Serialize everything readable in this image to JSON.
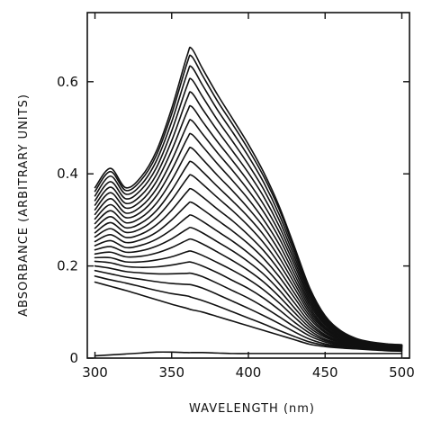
{
  "chart_data": {
    "type": "line",
    "title": "",
    "xlabel": "WAVELENGTH (nm)",
    "ylabel": "ABSORBANCE (ARBITRARY UNITS)",
    "xlim": [
      295,
      505
    ],
    "ylim": [
      0,
      0.75
    ],
    "xticks": [
      300,
      350,
      400,
      450,
      500
    ],
    "yticks": [
      0,
      0.2,
      0.4,
      0.6
    ],
    "xtick_labels": [
      "300",
      "350",
      "400",
      "450",
      "500"
    ],
    "ytick_labels": [
      "0",
      "0.2",
      "0.4",
      "0.6"
    ],
    "grid": false,
    "legend": "none",
    "line_color": "#111111",
    "x": [
      300,
      310,
      320,
      330,
      340,
      350,
      360,
      363,
      370,
      380,
      390,
      400,
      410,
      420,
      430,
      440,
      450,
      460,
      470,
      480,
      490,
      500
    ],
    "series": [
      {
        "values": [
          0.005,
          0.007,
          0.009,
          0.011,
          0.013,
          0.013,
          0.012,
          0.012,
          0.012,
          0.011,
          0.01,
          0.01,
          0.01,
          0.01,
          0.01,
          0.01,
          0.01,
          0.01,
          0.01,
          0.01,
          0.01,
          0.01
        ]
      },
      {
        "values": [
          0.165,
          0.156,
          0.147,
          0.137,
          0.127,
          0.117,
          0.108,
          0.105,
          0.1,
          0.09,
          0.08,
          0.07,
          0.06,
          0.05,
          0.04,
          0.03,
          0.025,
          0.022,
          0.02,
          0.018,
          0.016,
          0.015
        ]
      },
      {
        "values": [
          0.178,
          0.17,
          0.163,
          0.155,
          0.147,
          0.14,
          0.135,
          0.132,
          0.125,
          0.113,
          0.1,
          0.087,
          0.074,
          0.06,
          0.047,
          0.035,
          0.028,
          0.024,
          0.021,
          0.019,
          0.017,
          0.016
        ]
      },
      {
        "values": [
          0.19,
          0.183,
          0.176,
          0.171,
          0.166,
          0.162,
          0.16,
          0.159,
          0.152,
          0.138,
          0.123,
          0.108,
          0.092,
          0.075,
          0.057,
          0.041,
          0.031,
          0.026,
          0.022,
          0.02,
          0.018,
          0.017
        ]
      },
      {
        "values": [
          0.2,
          0.195,
          0.188,
          0.185,
          0.183,
          0.183,
          0.184,
          0.184,
          0.177,
          0.162,
          0.146,
          0.13,
          0.111,
          0.09,
          0.068,
          0.048,
          0.035,
          0.028,
          0.024,
          0.021,
          0.019,
          0.018
        ]
      },
      {
        "values": [
          0.21,
          0.207,
          0.199,
          0.197,
          0.198,
          0.202,
          0.208,
          0.208,
          0.2,
          0.185,
          0.168,
          0.151,
          0.13,
          0.105,
          0.078,
          0.054,
          0.038,
          0.03,
          0.025,
          0.022,
          0.02,
          0.019
        ]
      },
      {
        "values": [
          0.218,
          0.218,
          0.209,
          0.209,
          0.213,
          0.22,
          0.231,
          0.232,
          0.223,
          0.207,
          0.19,
          0.171,
          0.148,
          0.12,
          0.089,
          0.06,
          0.041,
          0.032,
          0.026,
          0.023,
          0.021,
          0.02
        ]
      },
      {
        "values": [
          0.226,
          0.23,
          0.22,
          0.221,
          0.228,
          0.24,
          0.256,
          0.258,
          0.248,
          0.23,
          0.211,
          0.19,
          0.165,
          0.134,
          0.099,
          0.066,
          0.045,
          0.034,
          0.027,
          0.024,
          0.022,
          0.021
        ]
      },
      {
        "values": [
          0.235,
          0.242,
          0.23,
          0.233,
          0.243,
          0.259,
          0.28,
          0.283,
          0.272,
          0.252,
          0.232,
          0.209,
          0.182,
          0.148,
          0.109,
          0.072,
          0.048,
          0.035,
          0.028,
          0.025,
          0.023,
          0.022
        ]
      },
      {
        "values": [
          0.244,
          0.255,
          0.24,
          0.245,
          0.258,
          0.279,
          0.306,
          0.31,
          0.297,
          0.275,
          0.253,
          0.228,
          0.199,
          0.162,
          0.12,
          0.078,
          0.051,
          0.037,
          0.03,
          0.026,
          0.024,
          0.022
        ]
      },
      {
        "values": [
          0.253,
          0.268,
          0.251,
          0.257,
          0.273,
          0.3,
          0.333,
          0.338,
          0.323,
          0.299,
          0.275,
          0.248,
          0.216,
          0.177,
          0.131,
          0.085,
          0.055,
          0.039,
          0.031,
          0.027,
          0.024,
          0.023
        ]
      },
      {
        "values": [
          0.263,
          0.281,
          0.262,
          0.269,
          0.289,
          0.321,
          0.361,
          0.367,
          0.35,
          0.323,
          0.297,
          0.267,
          0.233,
          0.191,
          0.141,
          0.091,
          0.058,
          0.041,
          0.032,
          0.028,
          0.025,
          0.024
        ]
      },
      {
        "values": [
          0.272,
          0.294,
          0.273,
          0.281,
          0.305,
          0.343,
          0.39,
          0.397,
          0.378,
          0.348,
          0.319,
          0.287,
          0.25,
          0.205,
          0.152,
          0.097,
          0.062,
          0.043,
          0.033,
          0.028,
          0.025,
          0.024
        ]
      },
      {
        "values": [
          0.282,
          0.307,
          0.283,
          0.293,
          0.32,
          0.364,
          0.418,
          0.426,
          0.405,
          0.372,
          0.34,
          0.306,
          0.267,
          0.219,
          0.162,
          0.103,
          0.065,
          0.045,
          0.034,
          0.029,
          0.026,
          0.025
        ]
      },
      {
        "values": [
          0.292,
          0.32,
          0.294,
          0.305,
          0.336,
          0.386,
          0.447,
          0.456,
          0.432,
          0.396,
          0.362,
          0.325,
          0.284,
          0.233,
          0.172,
          0.109,
          0.068,
          0.047,
          0.035,
          0.03,
          0.027,
          0.025
        ]
      },
      {
        "values": [
          0.302,
          0.333,
          0.305,
          0.317,
          0.352,
          0.408,
          0.476,
          0.486,
          0.46,
          0.421,
          0.384,
          0.345,
          0.3,
          0.247,
          0.182,
          0.115,
          0.072,
          0.049,
          0.036,
          0.031,
          0.027,
          0.026
        ]
      },
      {
        "values": [
          0.312,
          0.346,
          0.315,
          0.329,
          0.367,
          0.429,
          0.505,
          0.516,
          0.487,
          0.445,
          0.406,
          0.364,
          0.317,
          0.261,
          0.192,
          0.121,
          0.075,
          0.051,
          0.037,
          0.031,
          0.028,
          0.026
        ]
      },
      {
        "values": [
          0.322,
          0.359,
          0.326,
          0.341,
          0.383,
          0.451,
          0.534,
          0.546,
          0.514,
          0.469,
          0.427,
          0.383,
          0.333,
          0.274,
          0.202,
          0.127,
          0.078,
          0.052,
          0.038,
          0.032,
          0.028,
          0.027
        ]
      },
      {
        "values": [
          0.332,
          0.371,
          0.336,
          0.353,
          0.398,
          0.472,
          0.563,
          0.576,
          0.541,
          0.493,
          0.448,
          0.402,
          0.35,
          0.287,
          0.211,
          0.133,
          0.081,
          0.054,
          0.039,
          0.033,
          0.029,
          0.027
        ]
      },
      {
        "values": [
          0.342,
          0.383,
          0.346,
          0.365,
          0.413,
          0.493,
          0.591,
          0.605,
          0.568,
          0.516,
          0.469,
          0.42,
          0.366,
          0.3,
          0.22,
          0.139,
          0.084,
          0.056,
          0.04,
          0.033,
          0.029,
          0.028
        ]
      },
      {
        "values": [
          0.352,
          0.395,
          0.356,
          0.376,
          0.428,
          0.513,
          0.617,
          0.632,
          0.593,
          0.538,
          0.489,
          0.438,
          0.381,
          0.312,
          0.229,
          0.144,
          0.087,
          0.057,
          0.041,
          0.034,
          0.03,
          0.028
        ]
      },
      {
        "values": [
          0.362,
          0.405,
          0.364,
          0.386,
          0.44,
          0.53,
          0.64,
          0.655,
          0.614,
          0.557,
          0.506,
          0.453,
          0.394,
          0.323,
          0.237,
          0.149,
          0.09,
          0.059,
          0.042,
          0.034,
          0.03,
          0.028
        ]
      },
      {
        "values": [
          0.37,
          0.412,
          0.37,
          0.393,
          0.449,
          0.542,
          0.656,
          0.672,
          0.629,
          0.571,
          0.518,
          0.464,
          0.403,
          0.33,
          0.242,
          0.152,
          0.092,
          0.06,
          0.043,
          0.035,
          0.031,
          0.029
        ]
      }
    ]
  }
}
